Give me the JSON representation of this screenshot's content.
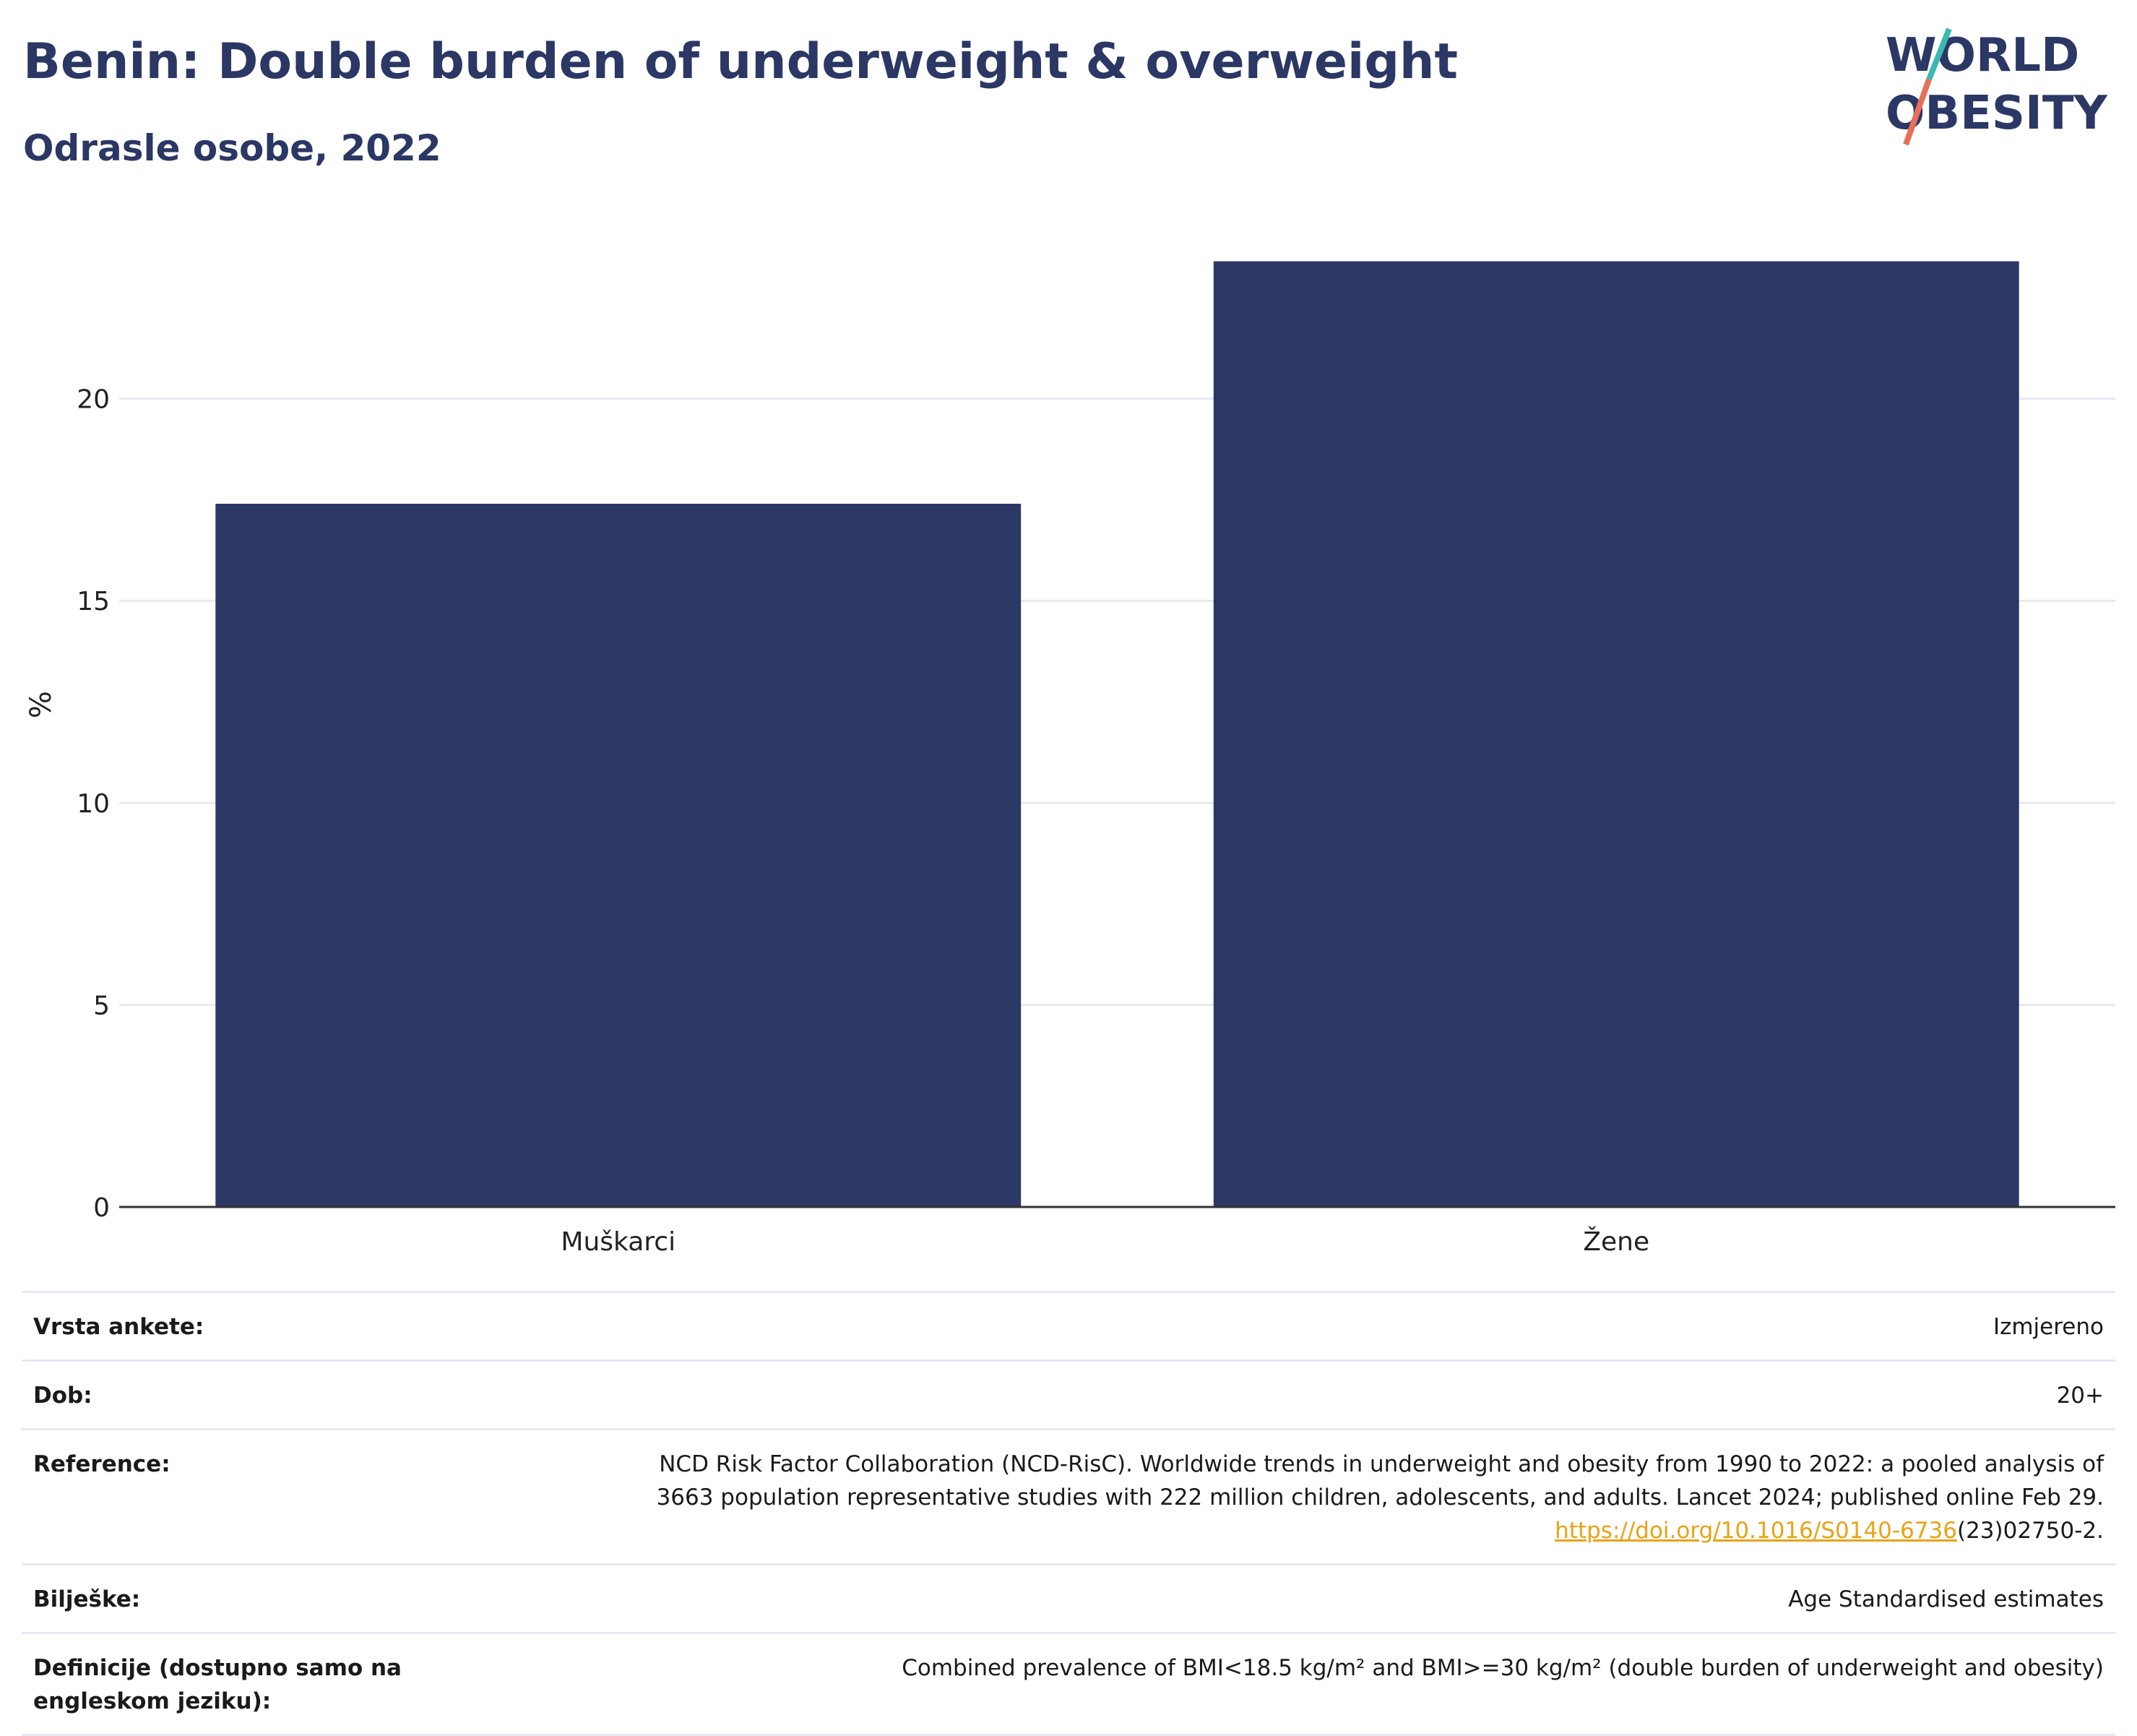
{
  "header": {
    "title": "Benin: Double burden of underweight & overweight",
    "subtitle": "Odrasle osobe, 2022"
  },
  "logo": {
    "line1": "WORLD",
    "line2": "OBESITY",
    "colors": [
      "#2b3764",
      "#e8705a",
      "#3bb8b0"
    ]
  },
  "chart_data": {
    "type": "bar",
    "categories": [
      "Muškarci",
      "Žene"
    ],
    "values": [
      17.4,
      23.4
    ],
    "ylabel": "%",
    "ylim": [
      0,
      24.5
    ],
    "yticks": [
      0,
      5,
      10,
      15,
      20
    ],
    "grid": true,
    "bar_color": "#2b3764"
  },
  "meta": {
    "rows": [
      {
        "key": "Vrsta ankete:",
        "value": "Izmjereno"
      },
      {
        "key": "Dob:",
        "value": "20+"
      },
      {
        "key": "Reference:",
        "value_line1": "NCD Risk Factor Collaboration (NCD-RisC). Worldwide trends in underweight and obesity from 1990 to 2022: a pooled analysis of",
        "value_line2": "3663 population representative studies with 222 million children, adolescents, and adults. Lancet 2024; published online Feb 29.",
        "link": "https://doi.org/10.1016/S0140-6736",
        "link_suffix": "(23)02750-2."
      },
      {
        "key": "Bilješke:",
        "value": "Age Standardised estimates"
      },
      {
        "key": "Definicije (dostupno samo na engleskom jeziku):",
        "value": "Combined prevalence of BMI<18.5 kg/m² and BMI>=30 kg/m² (double burden of underweight and obesity)"
      }
    ]
  }
}
